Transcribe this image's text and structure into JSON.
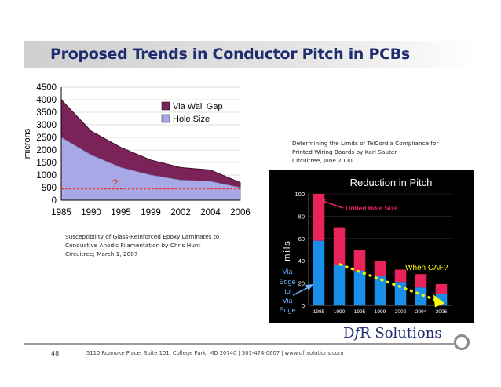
{
  "slide": {
    "title": "Proposed Trends in Conductor Pitch in PCBs",
    "citation_right": [
      "Determining the Limits of TelCordia Compliance for",
      "Printed Wiring Boards by Karl Sauter",
      "Circuitree, June 2000"
    ],
    "citation_left": [
      "Susceptibility of Glass-Reinforced Epoxy Laminates to",
      "Conductive Anodic Filamentation by Chris Hunt",
      "Circuitree; March 1, 2007"
    ],
    "page_number": "48",
    "footer": "5110 Roanoke Place, Suite 101, College Park, MD 20740  |  301-474-0607  |  www.dfrsolutions.com",
    "brand": "DfR Solutions",
    "brand_parts": [
      "D",
      "f",
      "R Solutions"
    ]
  },
  "chart_data": [
    {
      "type": "area",
      "title": "",
      "xlabel": "",
      "ylabel": "microns",
      "categories": [
        "1985",
        "1990",
        "1995",
        "1999",
        "2002",
        "2004",
        "2006"
      ],
      "yticks": [
        "0",
        "500",
        "1000",
        "1500",
        "2000",
        "2500",
        "3000",
        "3500",
        "4000",
        "4500"
      ],
      "ylim": [
        0,
        4500
      ],
      "series": [
        {
          "name": "Via Wall Gap",
          "values": [
            1500,
            950,
            800,
            600,
            500,
            450,
            200
          ],
          "color": "#7b2358"
        },
        {
          "name": "Hole Size",
          "values": [
            2500,
            1800,
            1300,
            1000,
            800,
            750,
            500
          ],
          "color": "#a8a8e6"
        }
      ],
      "annotation": "?",
      "reference_line": 450,
      "legend_position": "top-right"
    },
    {
      "type": "bar",
      "title": "Reduction in Pitch",
      "ylabel": "mils",
      "categories": [
        "1985",
        "1990",
        "1995",
        "1999",
        "2002",
        "2004",
        "2006"
      ],
      "yticks": [
        "0",
        "20",
        "40",
        "60",
        "80",
        "100"
      ],
      "ylim": [
        0,
        100
      ],
      "series": [
        {
          "name": "Via Edge to Via Edge",
          "values": [
            58,
            36,
            31,
            26,
            21,
            16,
            10
          ],
          "color": "#1a8fe8"
        },
        {
          "name": "Drilled Hole Size",
          "values": [
            42,
            34,
            19,
            14,
            11,
            12,
            9
          ],
          "color": "#e8245a"
        }
      ],
      "annotations": {
        "drilled": "Drilled Hole Size",
        "caf": "When CAF?",
        "via_edge": [
          "Via",
          "Edge",
          "to",
          "Via",
          "Edge"
        ]
      },
      "colors": {
        "background": "#000000",
        "trend": "#ffff00",
        "text": "#ffffff"
      }
    }
  ]
}
